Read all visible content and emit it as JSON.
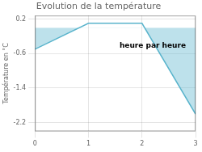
{
  "chart_data": {
    "type": "line",
    "title": "Evolution de la température",
    "ylabel": "Température en °C",
    "annotations": [
      {
        "text": "heure par heure",
        "x": 2.2,
        "y": -0.42
      }
    ],
    "series": [
      {
        "name": "Température",
        "color": "#5ab4cc",
        "x": [
          0,
          1,
          2,
          3
        ],
        "values": [
          -0.5,
          0.1,
          0.1,
          -2.0
        ]
      }
    ],
    "xlim": [
      0,
      3
    ],
    "xticks": [
      0,
      1,
      2,
      3
    ],
    "ylim": [
      -2.4,
      0.28
    ],
    "yticks": [
      0.2,
      -0.6,
      -1.4,
      -2.2
    ],
    "grid": true
  }
}
